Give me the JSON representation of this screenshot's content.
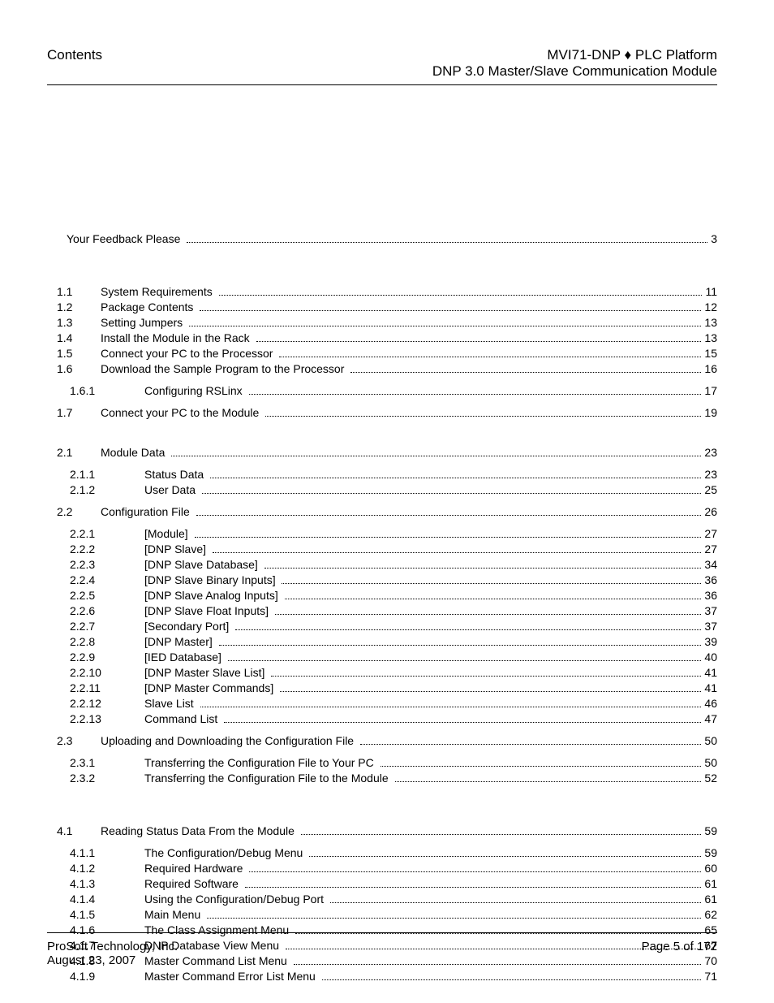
{
  "header": {
    "left": "Contents",
    "right_line1_a": "MVI71-DNP",
    "right_line1_sep": " ♦ ",
    "right_line1_b": "PLC Platform",
    "right_line2": "DNP 3.0 Master/Slave Communication Module"
  },
  "toc": {
    "front": [
      {
        "num": "",
        "title": "Your Feedback Please",
        "page": "3",
        "indent": 0
      }
    ],
    "section1": [
      {
        "num": "1.1",
        "title": "System Requirements",
        "page": "11",
        "indent": 0
      },
      {
        "num": "1.2",
        "title": "Package Contents",
        "page": "12",
        "indent": 0
      },
      {
        "num": "1.3",
        "title": "Setting Jumpers",
        "page": "13",
        "indent": 0
      },
      {
        "num": "1.4",
        "title": "Install the Module in the Rack",
        "page": "13",
        "indent": 0
      },
      {
        "num": "1.5",
        "title": "Connect your PC to the Processor",
        "page": "15",
        "indent": 0
      },
      {
        "num": "1.6",
        "title": "Download the Sample Program to the Processor",
        "page": "16",
        "indent": 0
      }
    ],
    "section1b": [
      {
        "num": "1.6.1",
        "title": "Configuring RSLinx",
        "page": "17",
        "indent": 1
      }
    ],
    "section1c": [
      {
        "num": "1.7",
        "title": "Connect your PC to the Module",
        "page": "19",
        "indent": 0
      }
    ],
    "section2a": [
      {
        "num": "2.1",
        "title": "Module Data",
        "page": "23",
        "indent": 0
      }
    ],
    "section2b": [
      {
        "num": "2.1.1",
        "title": "Status Data",
        "page": "23",
        "indent": 1
      },
      {
        "num": "2.1.2",
        "title": "User Data",
        "page": "25",
        "indent": 1
      }
    ],
    "section2c": [
      {
        "num": "2.2",
        "title": "Configuration File",
        "page": "26",
        "indent": 0
      }
    ],
    "section2d": [
      {
        "num": "2.2.1",
        "title": "[Module]",
        "page": "27",
        "indent": 1
      },
      {
        "num": "2.2.2",
        "title": "[DNP Slave]",
        "page": "27",
        "indent": 1
      },
      {
        "num": "2.2.3",
        "title": "[DNP Slave Database]",
        "page": "34",
        "indent": 1
      },
      {
        "num": "2.2.4",
        "title": "[DNP Slave Binary Inputs]",
        "page": "36",
        "indent": 1
      },
      {
        "num": "2.2.5",
        "title": "[DNP Slave Analog Inputs]",
        "page": "36",
        "indent": 1
      },
      {
        "num": "2.2.6",
        "title": "[DNP Slave Float Inputs]",
        "page": "37",
        "indent": 1
      },
      {
        "num": "2.2.7",
        "title": "[Secondary Port]",
        "page": "37",
        "indent": 1
      },
      {
        "num": "2.2.8",
        "title": "[DNP Master]",
        "page": "39",
        "indent": 1
      },
      {
        "num": "2.2.9",
        "title": "[IED Database]",
        "page": "40",
        "indent": 1
      },
      {
        "num": "2.2.10",
        "title": "[DNP Master Slave List]",
        "page": "41",
        "indent": 1
      },
      {
        "num": "2.2.11",
        "title": "[DNP Master Commands]",
        "page": "41",
        "indent": 1
      },
      {
        "num": "2.2.12",
        "title": "Slave List",
        "page": "46",
        "indent": 1
      },
      {
        "num": "2.2.13",
        "title": "Command List",
        "page": "47",
        "indent": 1
      }
    ],
    "section2e": [
      {
        "num": "2.3",
        "title": "Uploading and Downloading the Configuration File",
        "page": "50",
        "indent": 0
      }
    ],
    "section2f": [
      {
        "num": "2.3.1",
        "title": "Transferring the Configuration File to Your PC",
        "page": "50",
        "indent": 1
      },
      {
        "num": "2.3.2",
        "title": "Transferring the Configuration File to the Module",
        "page": "52",
        "indent": 1
      }
    ],
    "section4a": [
      {
        "num": "4.1",
        "title": "Reading Status Data From the Module",
        "page": "59",
        "indent": 0
      }
    ],
    "section4b": [
      {
        "num": "4.1.1",
        "title": "The Configuration/Debug Menu",
        "page": "59",
        "indent": 1
      },
      {
        "num": "4.1.2",
        "title": "Required Hardware",
        "page": "60",
        "indent": 1
      },
      {
        "num": "4.1.3",
        "title": "Required Software",
        "page": "61",
        "indent": 1
      },
      {
        "num": "4.1.4",
        "title": "Using the Configuration/Debug Port",
        "page": "61",
        "indent": 1
      },
      {
        "num": "4.1.5",
        "title": "Main Menu",
        "page": "62",
        "indent": 1
      },
      {
        "num": "4.1.6",
        "title": "The Class Assignment Menu",
        "page": "65",
        "indent": 1
      },
      {
        "num": "4.1.7",
        "title": "DNP Database View Menu",
        "page": "67",
        "indent": 1
      },
      {
        "num": "4.1.8",
        "title": "Master Command List Menu",
        "page": "70",
        "indent": 1
      },
      {
        "num": "4.1.9",
        "title": "Master Command Error List Menu",
        "page": "71",
        "indent": 1
      }
    ]
  },
  "footer": {
    "left_line1": "ProSoft Technology, Inc.",
    "left_line2": "August 23, 2007",
    "right": "Page 5 of 172"
  }
}
